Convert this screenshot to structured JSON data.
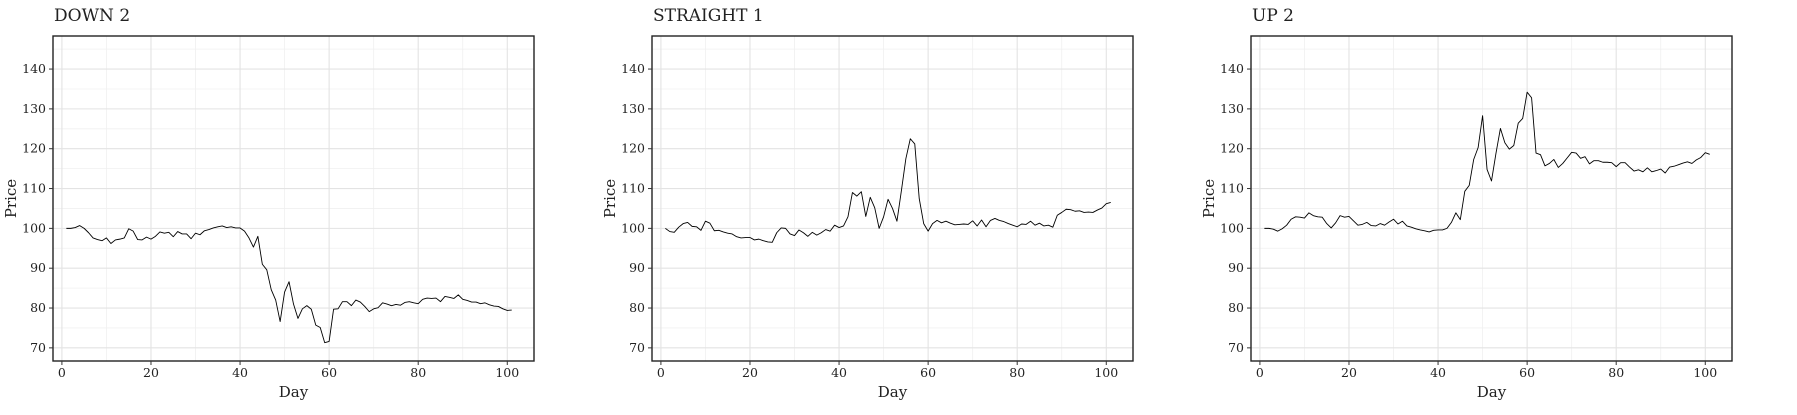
{
  "chart_data": [
    {
      "type": "line",
      "title": "DOWN 2",
      "xlabel": "Day",
      "ylabel": "Price",
      "xlim": [
        -2,
        106
      ],
      "ylim": [
        66.7,
        148.3
      ],
      "xticks": [
        0,
        20,
        40,
        60,
        80,
        100
      ],
      "yticks": [
        70,
        80,
        90,
        100,
        110,
        120,
        130,
        140
      ],
      "grid": true,
      "series": [
        {
          "x": [
            1,
            2,
            3,
            4,
            5,
            6,
            7,
            8,
            9,
            10,
            11,
            12,
            13,
            14,
            15,
            16,
            17,
            18,
            19,
            20,
            21,
            22,
            23,
            24,
            25,
            26,
            27,
            28,
            29,
            30,
            31,
            32,
            33,
            34,
            35,
            36,
            37,
            38,
            39,
            40,
            41,
            42,
            43,
            44,
            45,
            46,
            47,
            48,
            49,
            50,
            51,
            52,
            53,
            54,
            55,
            56,
            57,
            58,
            59,
            60,
            61,
            62,
            63,
            64,
            65,
            66,
            67,
            68,
            69,
            70,
            71,
            72,
            73,
            74,
            75,
            76,
            77,
            78,
            79,
            80,
            81,
            82,
            83,
            84,
            85,
            86,
            87,
            88,
            89,
            90,
            91,
            92,
            93,
            94,
            95,
            96,
            97,
            98,
            99,
            100,
            101
          ],
          "y": [
            100.0,
            100.0,
            100.2,
            100.7,
            100.0,
            98.9,
            97.6,
            97.2,
            96.9,
            97.6,
            96.2,
            97.1,
            97.3,
            97.6,
            99.9,
            99.3,
            97.2,
            97.1,
            97.8,
            97.3,
            98.0,
            99.1,
            98.8,
            99.0,
            97.9,
            99.2,
            98.6,
            98.6,
            97.4,
            98.8,
            98.4,
            99.4,
            99.7,
            100.1,
            100.4,
            100.6,
            100.2,
            100.4,
            100.1,
            100.1,
            99.3,
            97.6,
            95.3,
            98.0,
            91.0,
            89.6,
            84.6,
            82.0,
            76.6,
            84.0,
            86.6,
            81.0,
            77.4,
            79.8,
            80.6,
            79.7,
            75.7,
            75.1,
            71.3,
            71.6,
            79.7,
            79.8,
            81.6,
            81.6,
            80.6,
            82.0,
            81.5,
            80.4,
            79.1,
            79.8,
            80.1,
            81.3,
            81.0,
            80.6,
            80.9,
            80.7,
            81.4,
            81.6,
            81.3,
            81.1,
            82.2,
            82.5,
            82.4,
            82.5,
            81.6,
            82.9,
            82.7,
            82.4,
            83.3,
            82.2,
            81.9,
            81.5,
            81.5,
            81.1,
            81.3,
            80.8,
            80.5,
            80.4,
            79.8,
            79.4,
            79.5
          ]
        }
      ]
    },
    {
      "type": "line",
      "title": "STRAIGHT 1",
      "xlabel": "Day",
      "ylabel": "Price",
      "xlim": [
        -2,
        106
      ],
      "ylim": [
        66.7,
        148.3
      ],
      "xticks": [
        0,
        20,
        40,
        60,
        80,
        100
      ],
      "yticks": [
        70,
        80,
        90,
        100,
        110,
        120,
        130,
        140
      ],
      "grid": true,
      "series": [
        {
          "x": [
            1,
            2,
            3,
            4,
            5,
            6,
            7,
            8,
            9,
            10,
            11,
            12,
            13,
            14,
            15,
            16,
            17,
            18,
            19,
            20,
            21,
            22,
            23,
            24,
            25,
            26,
            27,
            28,
            29,
            30,
            31,
            32,
            33,
            34,
            35,
            36,
            37,
            38,
            39,
            40,
            41,
            42,
            43,
            44,
            45,
            46,
            47,
            48,
            49,
            50,
            51,
            52,
            53,
            54,
            55,
            56,
            57,
            58,
            59,
            60,
            61,
            62,
            63,
            64,
            65,
            66,
            67,
            68,
            69,
            70,
            71,
            72,
            73,
            74,
            75,
            76,
            77,
            78,
            79,
            80,
            81,
            82,
            83,
            84,
            85,
            86,
            87,
            88,
            89,
            90,
            91,
            92,
            93,
            94,
            95,
            96,
            97,
            98,
            99,
            100,
            101
          ],
          "y": [
            100.0,
            99.2,
            99.0,
            100.3,
            101.2,
            101.5,
            100.5,
            100.4,
            99.5,
            101.8,
            101.3,
            99.4,
            99.5,
            99.1,
            98.8,
            98.6,
            97.9,
            97.6,
            97.7,
            97.7,
            97.1,
            97.3,
            96.9,
            96.6,
            96.5,
            98.9,
            100.1,
            100.0,
            98.6,
            98.2,
            99.6,
            98.9,
            98.0,
            99.0,
            98.3,
            98.9,
            99.7,
            99.3,
            100.8,
            100.2,
            100.6,
            102.9,
            109.0,
            108.1,
            109.2,
            103.0,
            107.8,
            105.2,
            100.0,
            102.9,
            107.3,
            105.0,
            101.8,
            109.5,
            117.5,
            122.5,
            121.2,
            107.5,
            101.2,
            99.3,
            101.2,
            102.0,
            101.4,
            101.8,
            101.3,
            100.9,
            101.0,
            101.1,
            101.0,
            101.9,
            100.6,
            102.1,
            100.4,
            102.0,
            102.5,
            102.0,
            101.7,
            101.2,
            100.8,
            100.4,
            101.1,
            101.0,
            101.8,
            100.8,
            101.3,
            100.6,
            100.8,
            100.3,
            103.3,
            104.0,
            104.8,
            104.7,
            104.3,
            104.4,
            104.0,
            104.1,
            104.0,
            104.6,
            105.1,
            106.2,
            106.5
          ]
        }
      ]
    },
    {
      "type": "line",
      "title": "UP 2",
      "xlabel": "Day",
      "ylabel": "Price",
      "xlim": [
        -2,
        106
      ],
      "ylim": [
        66.7,
        148.3
      ],
      "xticks": [
        0,
        20,
        40,
        60,
        80,
        100
      ],
      "yticks": [
        70,
        80,
        90,
        100,
        110,
        120,
        130,
        140
      ],
      "grid": true,
      "series": [
        {
          "x": [
            1,
            2,
            3,
            4,
            5,
            6,
            7,
            8,
            9,
            10,
            11,
            12,
            13,
            14,
            15,
            16,
            17,
            18,
            19,
            20,
            21,
            22,
            23,
            24,
            25,
            26,
            27,
            28,
            29,
            30,
            31,
            32,
            33,
            34,
            35,
            36,
            37,
            38,
            39,
            40,
            41,
            42,
            43,
            44,
            45,
            46,
            47,
            48,
            49,
            50,
            51,
            52,
            53,
            54,
            55,
            56,
            57,
            58,
            59,
            60,
            61,
            62,
            63,
            64,
            65,
            66,
            67,
            68,
            69,
            70,
            71,
            72,
            73,
            74,
            75,
            76,
            77,
            78,
            79,
            80,
            81,
            82,
            83,
            84,
            85,
            86,
            87,
            88,
            89,
            90,
            91,
            92,
            93,
            94,
            95,
            96,
            97,
            98,
            99,
            100,
            101
          ],
          "y": [
            100.0,
            100.0,
            99.8,
            99.3,
            99.9,
            100.8,
            102.3,
            102.9,
            102.8,
            102.6,
            103.9,
            103.2,
            102.9,
            102.8,
            101.2,
            100.1,
            101.4,
            103.2,
            102.8,
            103.0,
            101.9,
            100.8,
            101.0,
            101.5,
            100.7,
            100.6,
            101.2,
            100.8,
            101.6,
            102.3,
            101.1,
            101.8,
            100.6,
            100.3,
            99.9,
            99.6,
            99.4,
            99.1,
            99.5,
            99.6,
            99.6,
            100.0,
            101.5,
            103.9,
            102.2,
            109.3,
            110.8,
            117.3,
            120.3,
            128.3,
            114.8,
            111.9,
            118.8,
            125.1,
            121.5,
            119.9,
            120.8,
            126.4,
            127.6,
            134.2,
            132.8,
            118.9,
            118.5,
            115.7,
            116.3,
            117.3,
            115.3,
            116.3,
            117.7,
            119.1,
            118.9,
            117.6,
            118.0,
            116.2,
            117.0,
            117.0,
            116.6,
            116.6,
            116.5,
            115.5,
            116.5,
            116.5,
            115.4,
            114.4,
            114.7,
            114.2,
            115.2,
            114.2,
            114.5,
            114.9,
            113.9,
            115.4,
            115.6,
            116.0,
            116.4,
            116.7,
            116.3,
            117.2,
            117.8,
            119.0,
            118.6
          ]
        }
      ]
    }
  ]
}
